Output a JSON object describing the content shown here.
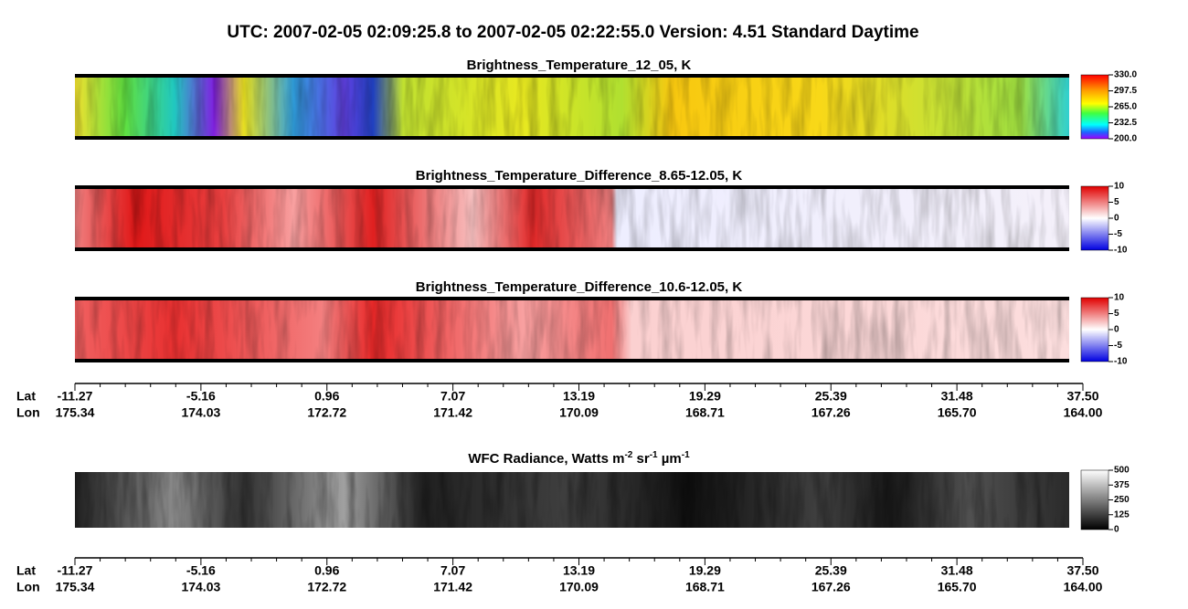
{
  "title": "UTC:  2007-02-05   02:09:25.8  to  2007-02-05   02:22:55.0    Version: 4.51  Standard Daytime",
  "panels": [
    {
      "title": [
        "Brightness_Temperature_12_05, K"
      ],
      "colorbar": [
        "330.0",
        "297.5",
        "265.0",
        "232.5",
        "200.0"
      ]
    },
    {
      "title": [
        "Brightness_Temperature_Difference_8.65-12.05, K"
      ],
      "colorbar": [
        "10",
        "5",
        "0",
        "-5",
        "-10"
      ]
    },
    {
      "title": [
        "Brightness_Temperature_Difference_10.6-12.05, K"
      ],
      "colorbar": [
        "10",
        "5",
        "0",
        "-5",
        "-10"
      ]
    },
    {
      "title": [
        "WFC Radiance, Watts m",
        "-2",
        " sr",
        "-1",
        " µm",
        "-1"
      ],
      "colorbar": [
        "500",
        "375",
        "250",
        "125",
        "0"
      ]
    }
  ],
  "axes": [
    {
      "lat_label": "Lat",
      "lon_label": "Lon",
      "lat": [
        "-11.27",
        "-5.16",
        "0.96",
        "7.07",
        "13.19",
        "19.29",
        "25.39",
        "31.48",
        "37.50"
      ],
      "lon": [
        "175.34",
        "174.03",
        "172.72",
        "171.42",
        "170.09",
        "168.71",
        "167.26",
        "165.70",
        "164.00"
      ]
    },
    {
      "lat_label": "Lat",
      "lon_label": "Lon",
      "lat": [
        "-11.27",
        "-5.16",
        "0.96",
        "7.07",
        "13.19",
        "19.29",
        "25.39",
        "31.48",
        "37.50"
      ],
      "lon": [
        "175.34",
        "174.03",
        "172.72",
        "171.42",
        "170.09",
        "168.71",
        "167.26",
        "165.70",
        "164.00"
      ]
    }
  ]
}
